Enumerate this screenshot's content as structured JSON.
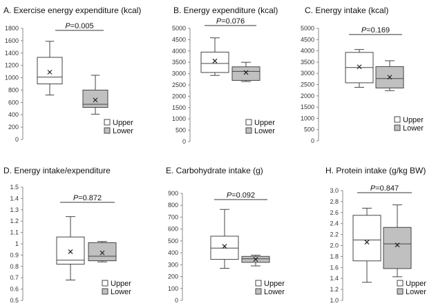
{
  "chart_data": [
    {
      "type": "box",
      "title": "A. Exercise energy expenditure (kcal)",
      "ylim": [
        0,
        1800
      ],
      "yticks": [
        0,
        200,
        400,
        600,
        800,
        1000,
        1200,
        1400,
        1600,
        1800
      ],
      "ytick_labels": [
        "0",
        "200",
        "400",
        "600",
        "800",
        "1000",
        "1200",
        "1400",
        "1600",
        "1800"
      ],
      "p_label": "P=0.005",
      "series": [
        {
          "name": "Upper",
          "color": "#ffffff",
          "min": 720,
          "q1": 900,
          "median": 1010,
          "q3": 1330,
          "max": 1590,
          "mean": 1090
        },
        {
          "name": "Lower",
          "color": "#c0c0c0",
          "min": 410,
          "q1": 520,
          "median": 570,
          "q3": 800,
          "max": 1040,
          "mean": 640
        }
      ]
    },
    {
      "type": "box",
      "title": "B. Energy expenditure (kcal)",
      "ylim": [
        0,
        5000
      ],
      "yticks": [
        0,
        500,
        1000,
        1500,
        2000,
        2500,
        3000,
        3500,
        4000,
        4500,
        5000
      ],
      "ytick_labels": [
        "0",
        "500",
        "1000",
        "1500",
        "2000",
        "2500",
        "3000",
        "3500",
        "4000",
        "4500",
        "5000"
      ],
      "p_label": "P=0.076",
      "series": [
        {
          "name": "Upper",
          "color": "#ffffff",
          "min": 2920,
          "q1": 3050,
          "median": 3450,
          "q3": 3950,
          "max": 4580,
          "mean": 3560
        },
        {
          "name": "Lower",
          "color": "#c0c0c0",
          "min": 2650,
          "q1": 2700,
          "median": 3100,
          "q3": 3300,
          "max": 3500,
          "mean": 3050
        }
      ]
    },
    {
      "type": "box",
      "title": "C. Energy intake (kcal)",
      "ylim": [
        0,
        5000
      ],
      "yticks": [
        0,
        500,
        1000,
        1500,
        2000,
        2500,
        3000,
        3500,
        4000,
        4500,
        5000
      ],
      "ytick_labels": [
        "0",
        "500",
        "1000",
        "1500",
        "2000",
        "2500",
        "3000",
        "3500",
        "4000",
        "4500",
        "5000"
      ],
      "p_label": "P=0.169",
      "series": [
        {
          "name": "Upper",
          "color": "#ffffff",
          "min": 2380,
          "q1": 2580,
          "median": 3260,
          "q3": 3930,
          "max": 4060,
          "mean": 3290
        },
        {
          "name": "Lower",
          "color": "#c0c0c0",
          "min": 2230,
          "q1": 2350,
          "median": 2770,
          "q3": 3300,
          "max": 3560,
          "mean": 2830
        }
      ]
    },
    {
      "type": "box",
      "title": "D. Energy intake/expenditure",
      "ylim": [
        0.5,
        1.5
      ],
      "yticks": [
        0.5,
        0.6,
        0.7,
        0.8,
        0.9,
        1.0,
        1.1,
        1.2,
        1.3,
        1.4,
        1.5
      ],
      "ytick_labels": [
        "0.5",
        "0.6",
        "0.7",
        "0.8",
        "0.9",
        "1",
        "1.1",
        "1.2",
        "1.3",
        "1.4",
        "1.5"
      ],
      "p_label": "P=0.872",
      "series": [
        {
          "name": "Upper",
          "color": "#ffffff",
          "min": 0.68,
          "q1": 0.82,
          "median": 0.855,
          "q3": 1.06,
          "max": 1.24,
          "mean": 0.93
        },
        {
          "name": "Lower",
          "color": "#c0c0c0",
          "min": 0.84,
          "q1": 0.85,
          "median": 0.89,
          "q3": 1.01,
          "max": 1.02,
          "mean": 0.92
        }
      ]
    },
    {
      "type": "box",
      "title": "E. Carbohydrate intake (g)",
      "ylim": [
        0,
        900
      ],
      "yticks": [
        0,
        100,
        200,
        300,
        400,
        500,
        600,
        700,
        800,
        900
      ],
      "ytick_labels": [
        "0",
        "100",
        "200",
        "300",
        "400",
        "500",
        "600",
        "700",
        "800",
        "900"
      ],
      "p_label": "P=0.092",
      "series": [
        {
          "name": "Upper",
          "color": "#ffffff",
          "min": 270,
          "q1": 345,
          "median": 440,
          "q3": 540,
          "max": 765,
          "mean": 455
        },
        {
          "name": "Lower",
          "color": "#c0c0c0",
          "min": 290,
          "q1": 320,
          "median": 350,
          "q3": 370,
          "max": 380,
          "mean": 345
        }
      ]
    },
    {
      "type": "box",
      "title": "H. Protein intake (g/kg BW)",
      "ylim": [
        1.0,
        3.0
      ],
      "yticks": [
        1.0,
        1.2,
        1.4,
        1.6,
        1.8,
        2.0,
        2.2,
        2.4,
        2.6,
        2.8,
        3.0
      ],
      "ytick_labels": [
        "1.0",
        "1.2",
        "1.4",
        "1.6",
        "1.8",
        "2.0",
        "2.2",
        "2.4",
        "2.6",
        "2.8",
        "3.0"
      ],
      "p_label": "P=0.847",
      "series": [
        {
          "name": "Upper",
          "color": "#ffffff",
          "min": 1.33,
          "q1": 1.72,
          "median": 2.1,
          "q3": 2.55,
          "max": 2.68,
          "mean": 2.06
        },
        {
          "name": "Lower",
          "color": "#c0c0c0",
          "min": 1.43,
          "q1": 1.58,
          "median": 2.03,
          "q3": 2.33,
          "max": 2.74,
          "mean": 2.01
        }
      ]
    }
  ],
  "legend": {
    "upper": "Upper",
    "lower": "Lower"
  },
  "p_prefix": "P"
}
